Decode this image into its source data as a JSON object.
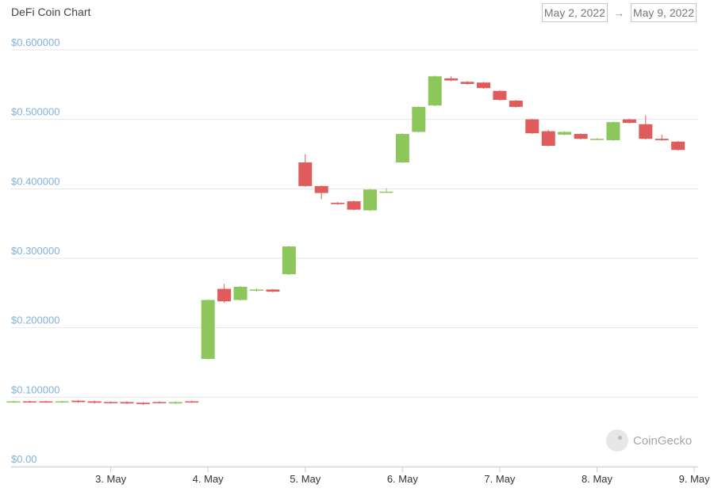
{
  "header": {
    "title": "DeFi Coin Chart",
    "from_date": "May 2, 2022",
    "to_date": "May 9, 2022",
    "arrow": "→"
  },
  "watermark": {
    "text": "CoinGecko",
    "icon": "coingecko-gecko-icon"
  },
  "colors": {
    "up": "#8dc65a",
    "down": "#e05b5b",
    "grid": "#e6e6e6",
    "tick": "#7fb2e0"
  },
  "chart_data": {
    "type": "candlestick",
    "title": "DeFi Coin Chart",
    "x_range": [
      "May 2, 2022",
      "May 9, 2022"
    ],
    "ylim": [
      0,
      0.6
    ],
    "y_ticks": [
      {
        "v": 0.6,
        "label": "$0.600000"
      },
      {
        "v": 0.5,
        "label": "$0.500000"
      },
      {
        "v": 0.4,
        "label": "$0.400000"
      },
      {
        "v": 0.3,
        "label": "$0.300000"
      },
      {
        "v": 0.2,
        "label": "$0.200000"
      },
      {
        "v": 0.1,
        "label": "$0.100000"
      },
      {
        "v": 0.0,
        "label": "$0.00"
      }
    ],
    "x_ticks": [
      {
        "h": 24,
        "label": "3. May"
      },
      {
        "h": 48,
        "label": "4. May"
      },
      {
        "h": 72,
        "label": "5. May"
      },
      {
        "h": 96,
        "label": "6. May"
      },
      {
        "h": 120,
        "label": "7. May"
      },
      {
        "h": 144,
        "label": "8. May"
      },
      {
        "h": 168,
        "label": "9. May"
      }
    ],
    "candles": [
      {
        "h": 0,
        "o": 0.093,
        "c": 0.094,
        "hi": 0.095,
        "lo": 0.092
      },
      {
        "h": 4,
        "o": 0.094,
        "c": 0.093,
        "hi": 0.095,
        "lo": 0.092
      },
      {
        "h": 8,
        "o": 0.094,
        "c": 0.093,
        "hi": 0.095,
        "lo": 0.092
      },
      {
        "h": 12,
        "o": 0.093,
        "c": 0.094,
        "hi": 0.095,
        "lo": 0.092
      },
      {
        "h": 16,
        "o": 0.095,
        "c": 0.093,
        "hi": 0.096,
        "lo": 0.092
      },
      {
        "h": 20,
        "o": 0.094,
        "c": 0.092,
        "hi": 0.095,
        "lo": 0.091
      },
      {
        "h": 24,
        "o": 0.093,
        "c": 0.092,
        "hi": 0.094,
        "lo": 0.091
      },
      {
        "h": 28,
        "o": 0.093,
        "c": 0.091,
        "hi": 0.094,
        "lo": 0.09
      },
      {
        "h": 32,
        "o": 0.092,
        "c": 0.09,
        "hi": 0.093,
        "lo": 0.089
      },
      {
        "h": 36,
        "o": 0.093,
        "c": 0.092,
        "hi": 0.094,
        "lo": 0.091
      },
      {
        "h": 40,
        "o": 0.091,
        "c": 0.093,
        "hi": 0.094,
        "lo": 0.09
      },
      {
        "h": 44,
        "o": 0.094,
        "c": 0.093,
        "hi": 0.095,
        "lo": 0.092
      },
      {
        "h": 48,
        "o": 0.155,
        "c": 0.24,
        "hi": 0.241,
        "lo": 0.154
      },
      {
        "h": 52,
        "o": 0.256,
        "c": 0.238,
        "hi": 0.263,
        "lo": 0.236
      },
      {
        "h": 56,
        "o": 0.24,
        "c": 0.259,
        "hi": 0.26,
        "lo": 0.239
      },
      {
        "h": 60,
        "o": 0.254,
        "c": 0.255,
        "hi": 0.257,
        "lo": 0.252
      },
      {
        "h": 64,
        "o": 0.255,
        "c": 0.252,
        "hi": 0.256,
        "lo": 0.251
      },
      {
        "h": 68,
        "o": 0.277,
        "c": 0.317,
        "hi": 0.318,
        "lo": 0.276
      },
      {
        "h": 72,
        "o": 0.438,
        "c": 0.404,
        "hi": 0.45,
        "lo": 0.403
      },
      {
        "h": 76,
        "o": 0.404,
        "c": 0.394,
        "hi": 0.405,
        "lo": 0.385
      },
      {
        "h": 80,
        "o": 0.38,
        "c": 0.378,
        "hi": 0.381,
        "lo": 0.377
      },
      {
        "h": 84,
        "o": 0.382,
        "c": 0.37,
        "hi": 0.383,
        "lo": 0.369
      },
      {
        "h": 88,
        "o": 0.369,
        "c": 0.399,
        "hi": 0.4,
        "lo": 0.368
      },
      {
        "h": 92,
        "o": 0.395,
        "c": 0.396,
        "hi": 0.401,
        "lo": 0.394
      },
      {
        "h": 96,
        "o": 0.438,
        "c": 0.479,
        "hi": 0.48,
        "lo": 0.437
      },
      {
        "h": 100,
        "o": 0.482,
        "c": 0.518,
        "hi": 0.519,
        "lo": 0.481
      },
      {
        "h": 104,
        "o": 0.52,
        "c": 0.562,
        "hi": 0.563,
        "lo": 0.519
      },
      {
        "h": 108,
        "o": 0.559,
        "c": 0.556,
        "hi": 0.562,
        "lo": 0.555
      },
      {
        "h": 112,
        "o": 0.554,
        "c": 0.551,
        "hi": 0.555,
        "lo": 0.55
      },
      {
        "h": 116,
        "o": 0.553,
        "c": 0.545,
        "hi": 0.554,
        "lo": 0.544
      },
      {
        "h": 120,
        "o": 0.541,
        "c": 0.528,
        "hi": 0.542,
        "lo": 0.527
      },
      {
        "h": 124,
        "o": 0.527,
        "c": 0.518,
        "hi": 0.528,
        "lo": 0.517
      },
      {
        "h": 128,
        "o": 0.5,
        "c": 0.48,
        "hi": 0.501,
        "lo": 0.479
      },
      {
        "h": 132,
        "o": 0.483,
        "c": 0.462,
        "hi": 0.485,
        "lo": 0.461
      },
      {
        "h": 136,
        "o": 0.478,
        "c": 0.482,
        "hi": 0.483,
        "lo": 0.477
      },
      {
        "h": 140,
        "o": 0.479,
        "c": 0.472,
        "hi": 0.48,
        "lo": 0.471
      },
      {
        "h": 144,
        "o": 0.471,
        "c": 0.472,
        "hi": 0.473,
        "lo": 0.47
      },
      {
        "h": 148,
        "o": 0.47,
        "c": 0.496,
        "hi": 0.497,
        "lo": 0.469
      },
      {
        "h": 152,
        "o": 0.5,
        "c": 0.495,
        "hi": 0.501,
        "lo": 0.494
      },
      {
        "h": 156,
        "o": 0.493,
        "c": 0.472,
        "hi": 0.506,
        "lo": 0.471
      },
      {
        "h": 160,
        "o": 0.472,
        "c": 0.47,
        "hi": 0.478,
        "lo": 0.469
      },
      {
        "h": 164,
        "o": 0.468,
        "c": 0.456,
        "hi": 0.469,
        "lo": 0.455
      }
    ]
  }
}
